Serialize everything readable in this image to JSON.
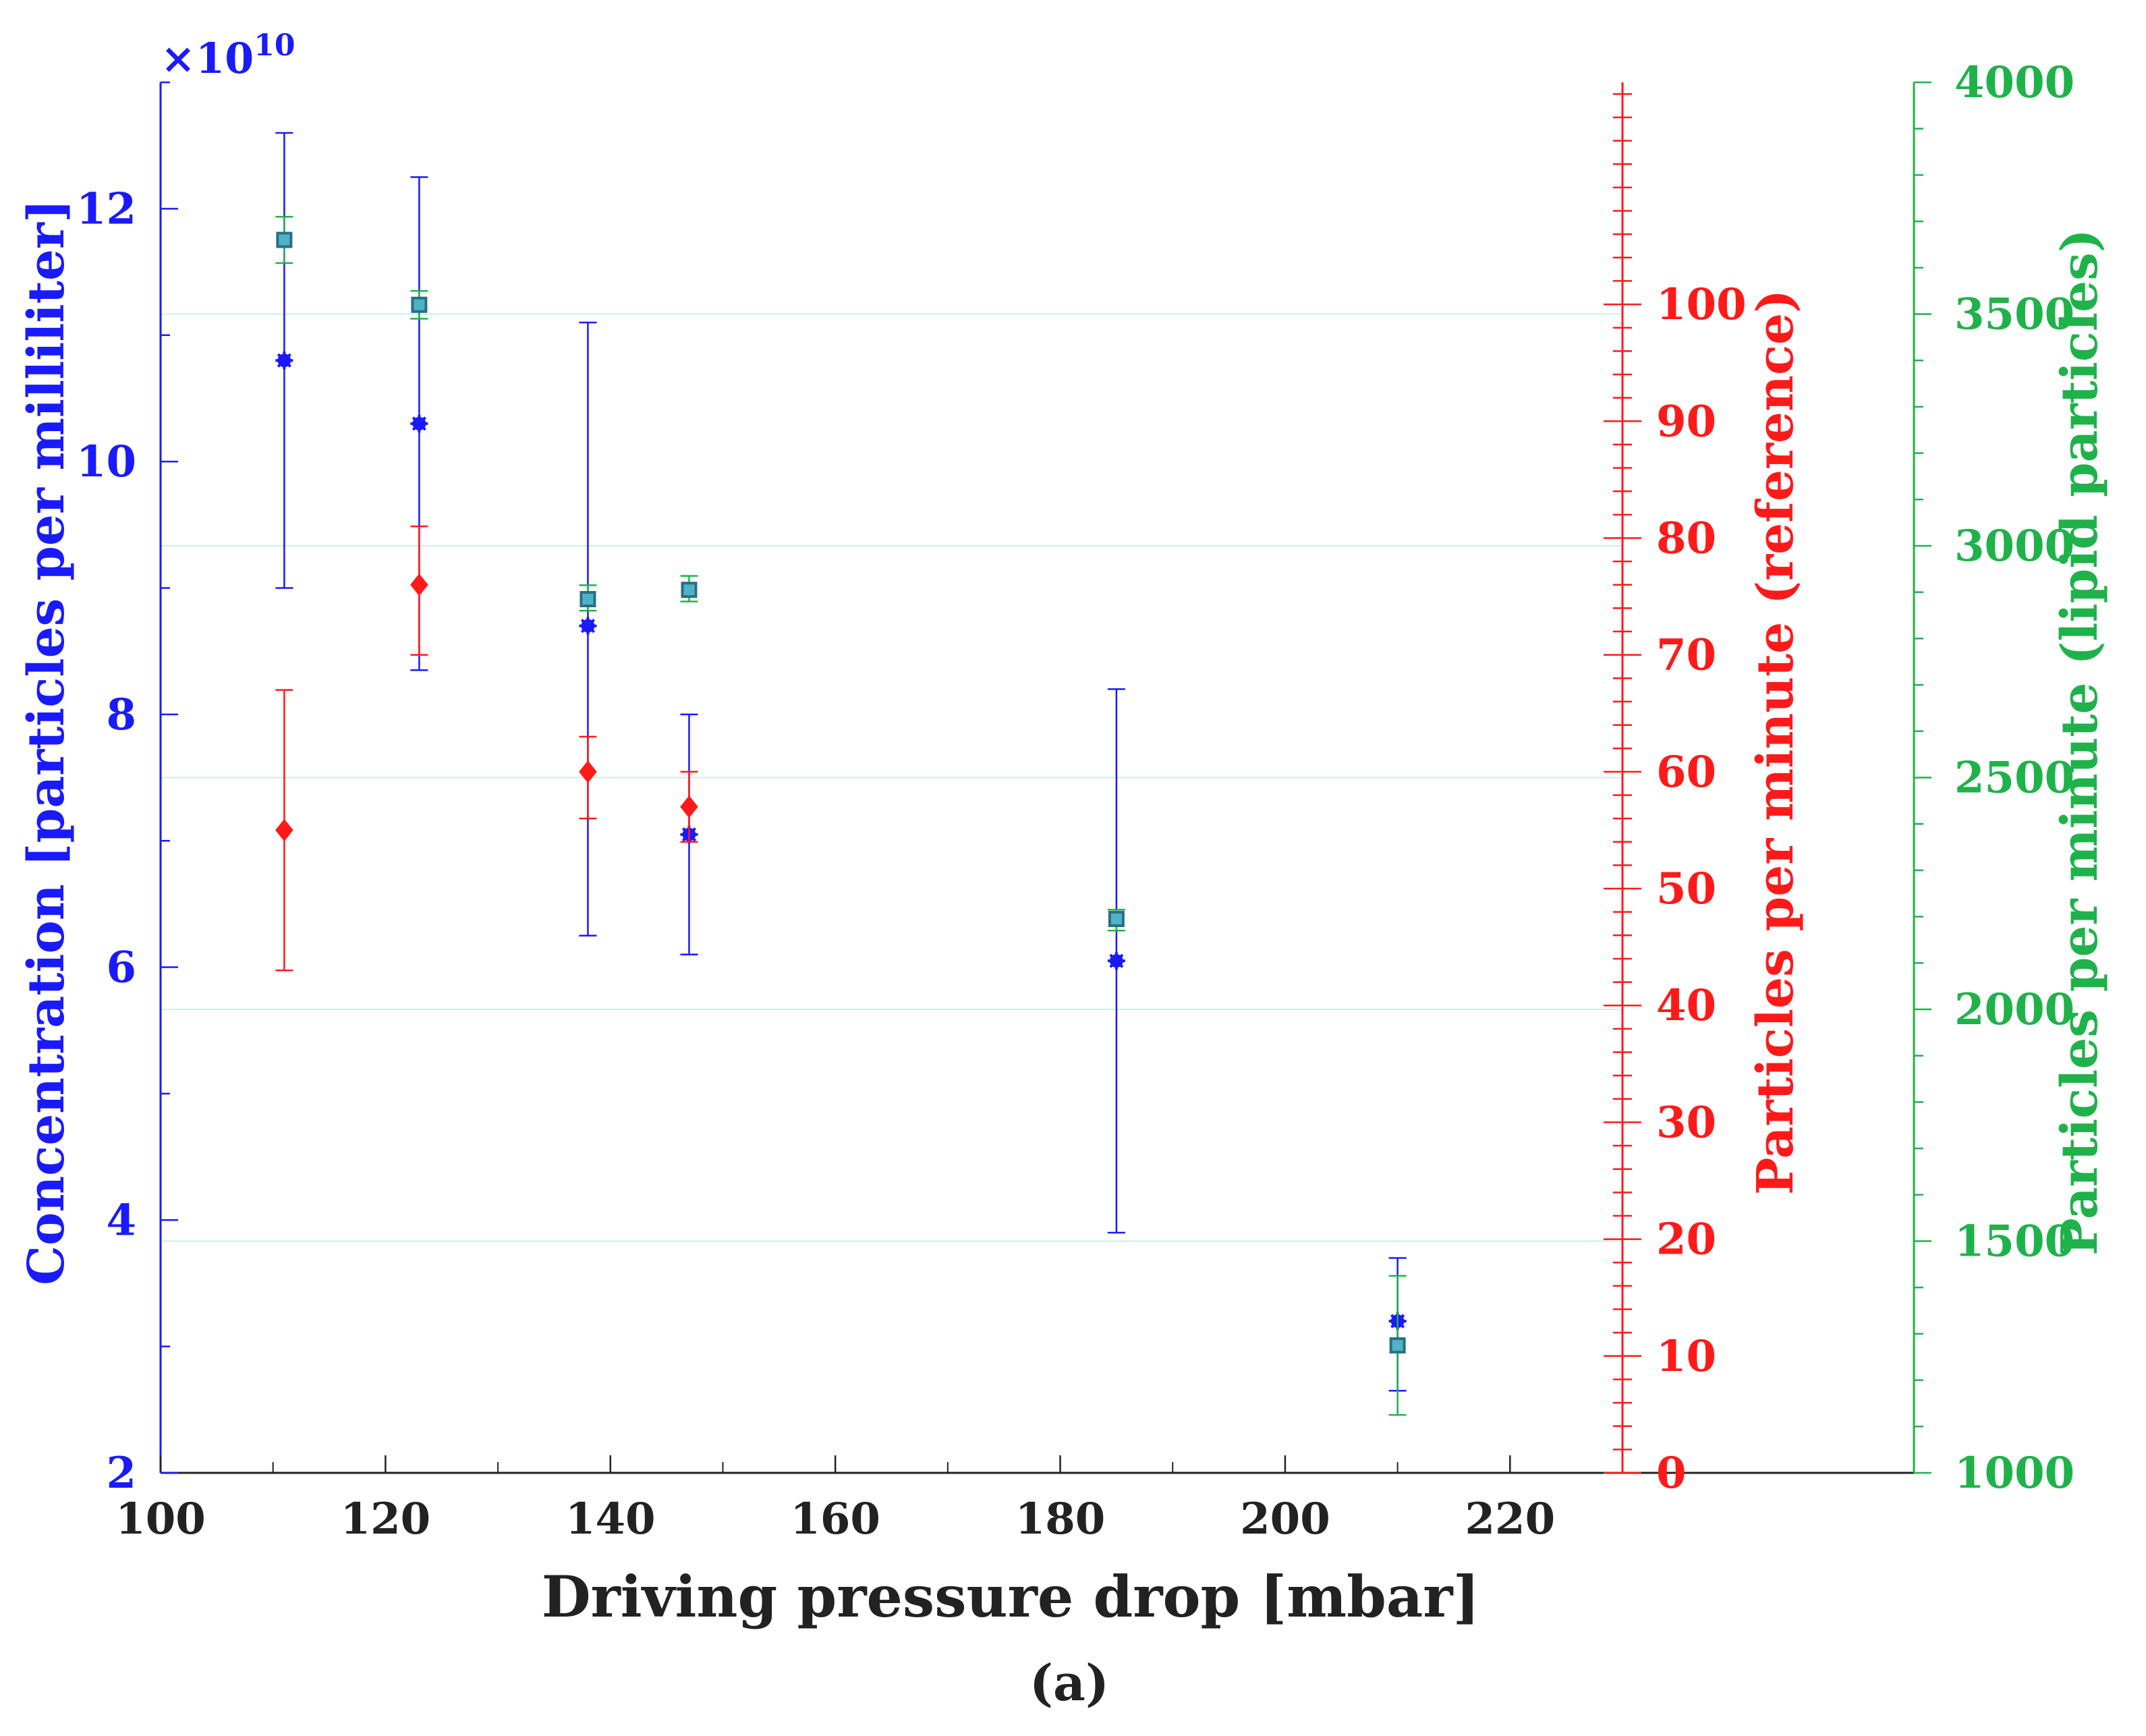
{
  "chart_data": {
    "type": "scatter",
    "title": "",
    "xlabel": "Driving pressure drop [mbar]",
    "xlim": [
      100,
      230
    ],
    "x_ticks": [
      100,
      120,
      140,
      160,
      180,
      200,
      220
    ],
    "x_tick_labels": [
      "100",
      "120",
      "140",
      "160",
      "180",
      "200",
      "220"
    ],
    "grid": "horizontal, aligned with right (green) axis ticks",
    "caption": "(a)",
    "colors": {
      "left_axis": "#1a1aff",
      "mid_axis": "#ff1a1a",
      "right_axis": "#1fb24a",
      "grid": "#cfeee6",
      "black": "#222222"
    },
    "axes": [
      {
        "id": "left",
        "label": "Concentration [particles per milliliter]",
        "exponent_label": "×10",
        "exponent_sup": "10",
        "ylim": [
          2,
          13
        ],
        "ticks": [
          2,
          4,
          6,
          8,
          10,
          12
        ],
        "tick_labels": [
          "2",
          "4",
          "6",
          "8",
          "10",
          "12"
        ]
      },
      {
        "id": "mid",
        "label": "Particles per minute (reference)",
        "ylim": [
          0,
          119
        ],
        "ticks": [
          0,
          10,
          20,
          30,
          40,
          50,
          60,
          70,
          80,
          90,
          100
        ],
        "tick_labels": [
          "0",
          "10",
          "20",
          "30",
          "40",
          "50",
          "60",
          "70",
          "80",
          "90",
          "100"
        ]
      },
      {
        "id": "right",
        "label": "Particles per minute (lipid particles)",
        "ylim": [
          1000,
          4000
        ],
        "ticks": [
          1000,
          1500,
          2000,
          2500,
          3000,
          3500,
          4000
        ],
        "tick_labels": [
          "1000",
          "1500",
          "2000",
          "2500",
          "3000",
          "3500",
          "4000"
        ]
      }
    ],
    "series": [
      {
        "name": "Concentration",
        "axis": "left",
        "marker": "star",
        "color": "#1a1aff",
        "points": [
          {
            "x": 111,
            "y": 10.8,
            "low": 9.0,
            "high": 12.6
          },
          {
            "x": 123,
            "y": 10.3,
            "low": 8.35,
            "high": 12.25
          },
          {
            "x": 138,
            "y": 8.7,
            "low": 6.25,
            "high": 11.1
          },
          {
            "x": 147,
            "y": 7.05,
            "low": 6.1,
            "high": 8.0
          },
          {
            "x": 185,
            "y": 6.05,
            "low": 3.9,
            "high": 8.2
          },
          {
            "x": 210,
            "y": 3.2,
            "low": 2.65,
            "high": 3.7
          }
        ]
      },
      {
        "name": "Reference particles per minute",
        "axis": "mid",
        "marker": "diamond",
        "color": "#ff1a1a",
        "points": [
          {
            "x": 111,
            "y": 55,
            "low": 43,
            "high": 67
          },
          {
            "x": 123,
            "y": 76,
            "low": 70,
            "high": 81
          },
          {
            "x": 138,
            "y": 60,
            "low": 56,
            "high": 63
          },
          {
            "x": 147,
            "y": 57,
            "low": 54,
            "high": 60
          }
        ]
      },
      {
        "name": "Lipid particles per minute",
        "axis": "right",
        "marker": "square",
        "color": "#1fb24a",
        "fill": "#4fb3c8",
        "points": [
          {
            "x": 111,
            "y": 3660,
            "low": 3610,
            "high": 3710
          },
          {
            "x": 123,
            "y": 3520,
            "low": 3490,
            "high": 3550
          },
          {
            "x": 138,
            "y": 2885,
            "low": 2860,
            "high": 2915
          },
          {
            "x": 147,
            "y": 2905,
            "low": 2880,
            "high": 2935
          },
          {
            "x": 185,
            "y": 2195,
            "low": 2170,
            "high": 2215
          },
          {
            "x": 210,
            "y": 1275,
            "low": 1125,
            "high": 1425
          }
        ]
      }
    ]
  }
}
